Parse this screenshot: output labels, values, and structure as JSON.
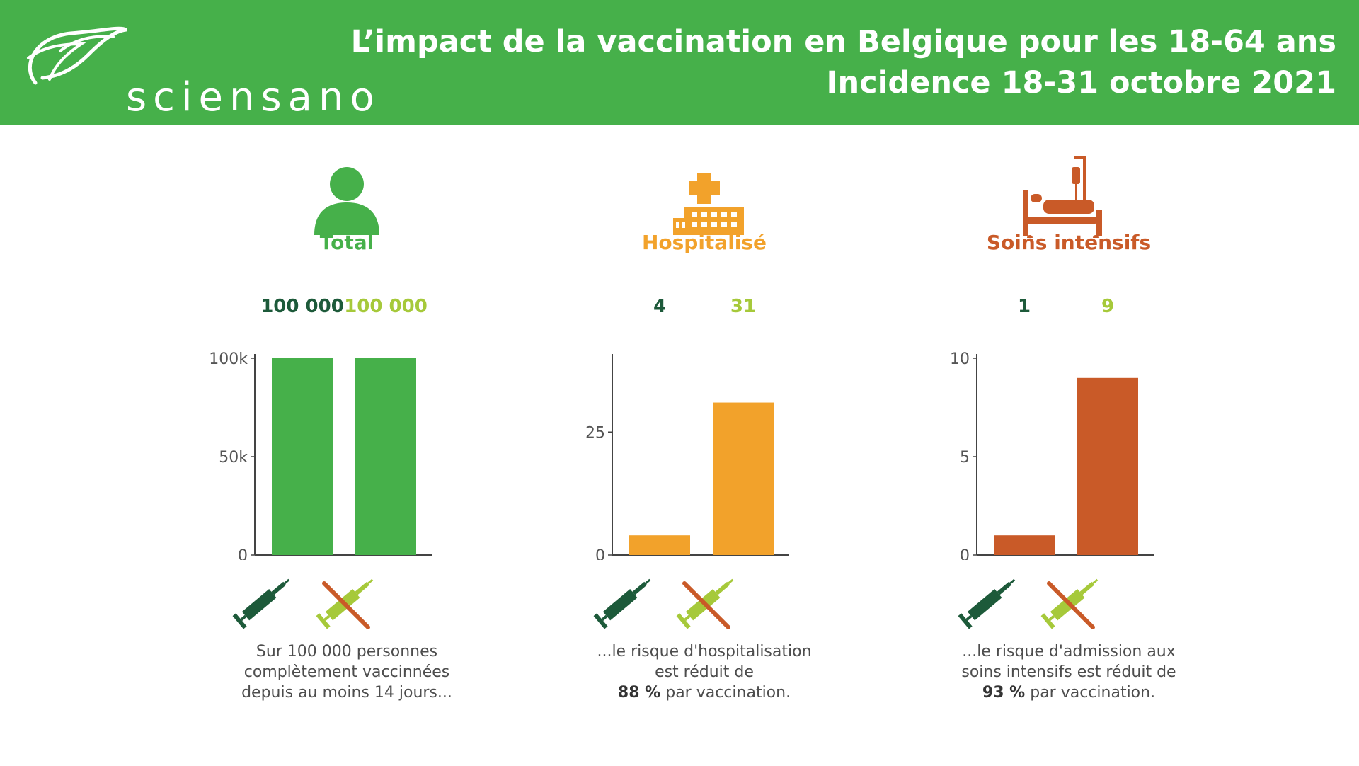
{
  "header": {
    "logo_text": "sciensano",
    "title_line1": "L’impact de la vaccination en Belgique pour les 18-64 ans",
    "title_line2": "Incidence 18-31 octobre 2021"
  },
  "colors": {
    "header_bg": "#46b04a",
    "vaccinated_label": "#1d5a3a",
    "unvaccinated_label": "#a6c93a",
    "total": "#46b04a",
    "hospital": "#f2a22b",
    "icu": "#c95a28",
    "syringe_vaccinated": "#1d5a3a",
    "syringe_unvaccinated": "#a6c93a",
    "cross": "#c95a28"
  },
  "panels": [
    {
      "label": "Total",
      "icon": "person-icon",
      "caption_lines": [
        "Sur 100 000 personnes",
        "complètement vaccinnées",
        "depuis au moins 14 jours..."
      ]
    },
    {
      "label": "Hospitalisé",
      "icon": "hospital-icon",
      "caption_lines": [
        "...le risque d'hospitalisation",
        "est réduit de"
      ],
      "caption_bold": "88 %",
      "caption_tail": " par vaccination."
    },
    {
      "label": "Soins intensifs",
      "icon": "hospital-bed-icon",
      "caption_lines": [
        "...le risque d'admission aux",
        "soins intensifs est réduit de"
      ],
      "caption_bold": "93 %",
      "caption_tail": " par vaccination."
    }
  ],
  "chart_data": [
    {
      "type": "bar",
      "title": "Total",
      "categories": [
        "vaccinés",
        "non vaccinés"
      ],
      "values": [
        100000,
        100000
      ],
      "value_labels": [
        "100 000",
        "100 000"
      ],
      "ylim": [
        0,
        100000
      ],
      "yticks": [
        0,
        50000,
        100000
      ],
      "ytick_labels": [
        "0",
        "50k",
        "100k"
      ],
      "color": "#46b04a"
    },
    {
      "type": "bar",
      "title": "Hospitalisé",
      "categories": [
        "vaccinés",
        "non vaccinés"
      ],
      "values": [
        4,
        31
      ],
      "value_labels": [
        "4",
        "31"
      ],
      "ylim": [
        0,
        40
      ],
      "yticks": [
        0,
        25
      ],
      "ytick_labels": [
        "0",
        "25"
      ],
      "color": "#f2a22b"
    },
    {
      "type": "bar",
      "title": "Soins intensifs",
      "categories": [
        "vaccinés",
        "non vaccinés"
      ],
      "values": [
        1,
        9
      ],
      "value_labels": [
        "1",
        "9"
      ],
      "ylim": [
        0,
        10
      ],
      "yticks": [
        0,
        5,
        10
      ],
      "ytick_labels": [
        "0",
        "5",
        "10"
      ],
      "color": "#c95a28"
    }
  ]
}
